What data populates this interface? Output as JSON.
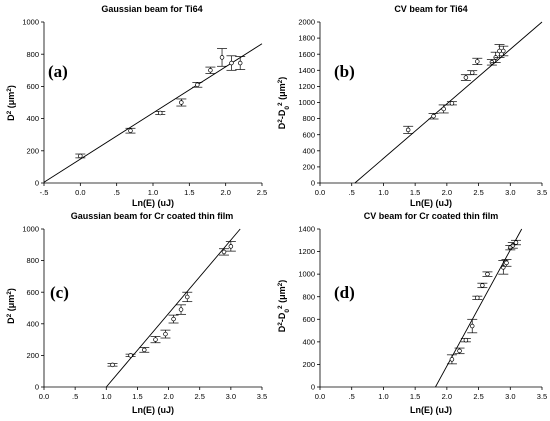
{
  "chart_data": [
    {
      "type": "scatter",
      "title": "Gaussian beam for Ti64",
      "panel_label": "(a)",
      "xlabel": "Ln(E) (uJ)",
      "ylabel": "D2 (um2)",
      "ylabel_base": "D",
      "ylabel_unit": "(μm",
      "xlim": [
        -0.5,
        2.5
      ],
      "ylim": [
        0,
        1000
      ],
      "x_ticks": [
        "-.5",
        "0.0",
        ".5",
        "1.0",
        "1.5",
        "2.0",
        "2.5"
      ],
      "y_ticks": [
        "0",
        "200",
        "400",
        "600",
        "800",
        "1000"
      ],
      "points": [
        {
          "x": 0.0,
          "y": 168,
          "err": 12
        },
        {
          "x": 0.69,
          "y": 325,
          "err": 15
        },
        {
          "x": 1.1,
          "y": 435,
          "err": 10
        },
        {
          "x": 1.39,
          "y": 500,
          "err": 22
        },
        {
          "x": 1.61,
          "y": 610,
          "err": 15
        },
        {
          "x": 1.79,
          "y": 700,
          "err": 20
        },
        {
          "x": 1.95,
          "y": 780,
          "err": 55
        },
        {
          "x": 2.08,
          "y": 745,
          "err": 45
        },
        {
          "x": 2.2,
          "y": 745,
          "err": 40
        }
      ],
      "fit": {
        "x": [
          -0.5,
          2.5
        ],
        "y": [
          5,
          865
        ]
      }
    },
    {
      "type": "scatter",
      "title": "CV beam for Ti64",
      "panel_label": "(b)",
      "xlabel": "Ln(E) (uJ)",
      "ylabel": "D2-D02 (um2)",
      "ylabel_base": "D",
      "ylabel_unit": "(μm",
      "xlim": [
        0,
        3.5
      ],
      "ylim": [
        0,
        2000
      ],
      "x_ticks": [
        "0.0",
        ".5",
        "1.0",
        "1.5",
        "2.0",
        "2.5",
        "3.0",
        "3.5"
      ],
      "y_ticks": [
        "0",
        "200",
        "400",
        "600",
        "800",
        "1000",
        "1200",
        "1400",
        "1600",
        "1800",
        "2000"
      ],
      "points": [
        {
          "x": 1.39,
          "y": 660,
          "err": 45
        },
        {
          "x": 1.79,
          "y": 830,
          "err": 35
        },
        {
          "x": 1.95,
          "y": 920,
          "err": 50
        },
        {
          "x": 2.08,
          "y": 990,
          "err": 20
        },
        {
          "x": 2.3,
          "y": 1310,
          "err": 35
        },
        {
          "x": 2.4,
          "y": 1370,
          "err": 25
        },
        {
          "x": 2.48,
          "y": 1510,
          "err": 40
        },
        {
          "x": 2.71,
          "y": 1500,
          "err": 35
        },
        {
          "x": 2.77,
          "y": 1560,
          "err": 65
        },
        {
          "x": 2.83,
          "y": 1640,
          "err": 80
        },
        {
          "x": 2.89,
          "y": 1640,
          "err": 60
        }
      ],
      "fit": {
        "x": [
          0.55,
          3.5
        ],
        "y": [
          0,
          2000
        ]
      }
    },
    {
      "type": "scatter",
      "title": "Gaussian beam for Cr coated thin film",
      "panel_label": "(c)",
      "xlabel": "Ln(E) (uJ)",
      "ylabel": "D2 (um2)",
      "ylabel_base": "D",
      "ylabel_unit": "(μm",
      "xlim": [
        0,
        3.5
      ],
      "ylim": [
        0,
        1000
      ],
      "x_ticks": [
        "0.0",
        ".5",
        "1.0",
        "1.5",
        "2.0",
        "2.5",
        "3.0",
        "3.5"
      ],
      "y_ticks": [
        "0",
        "200",
        "400",
        "600",
        "800",
        "1000"
      ],
      "points": [
        {
          "x": 1.1,
          "y": 140,
          "err": 8
        },
        {
          "x": 1.39,
          "y": 200,
          "err": 8
        },
        {
          "x": 1.61,
          "y": 235,
          "err": 15
        },
        {
          "x": 1.79,
          "y": 300,
          "err": 20
        },
        {
          "x": 1.95,
          "y": 335,
          "err": 25
        },
        {
          "x": 2.08,
          "y": 430,
          "err": 25
        },
        {
          "x": 2.2,
          "y": 490,
          "err": 30
        },
        {
          "x": 2.3,
          "y": 570,
          "err": 30
        },
        {
          "x": 2.89,
          "y": 855,
          "err": 20
        },
        {
          "x": 3.0,
          "y": 890,
          "err": 30
        }
      ],
      "fit": {
        "x": [
          1.0,
          3.15
        ],
        "y": [
          0,
          1000
        ]
      }
    },
    {
      "type": "scatter",
      "title": "CV beam for Cr coated thin film",
      "panel_label": "(d)",
      "xlabel": "Ln(E) (uJ)",
      "ylabel": "D2-D02 (um2)",
      "ylabel_base": "D",
      "ylabel_unit": "(μm",
      "xlim": [
        0,
        3.5
      ],
      "ylim": [
        0,
        1400
      ],
      "x_ticks": [
        "0.0",
        ".5",
        "1.0",
        "1.5",
        "2.0",
        "2.5",
        "3.0",
        "3.5"
      ],
      "y_ticks": [
        "0",
        "200",
        "400",
        "600",
        "800",
        "1000",
        "1200",
        "1400"
      ],
      "points": [
        {
          "x": 2.08,
          "y": 245,
          "err": 40
        },
        {
          "x": 2.2,
          "y": 320,
          "err": 25
        },
        {
          "x": 2.3,
          "y": 415,
          "err": 15
        },
        {
          "x": 2.4,
          "y": 540,
          "err": 60
        },
        {
          "x": 2.48,
          "y": 790,
          "err": 15
        },
        {
          "x": 2.56,
          "y": 900,
          "err": 20
        },
        {
          "x": 2.64,
          "y": 1000,
          "err": 20
        },
        {
          "x": 2.89,
          "y": 1060,
          "err": 60
        },
        {
          "x": 2.94,
          "y": 1100,
          "err": 30
        },
        {
          "x": 3.0,
          "y": 1235,
          "err": 20
        },
        {
          "x": 3.04,
          "y": 1255,
          "err": 25
        },
        {
          "x": 3.09,
          "y": 1280,
          "err": 20
        }
      ],
      "fit": {
        "x": [
          1.82,
          3.18
        ],
        "y": [
          0,
          1400
        ]
      }
    }
  ]
}
